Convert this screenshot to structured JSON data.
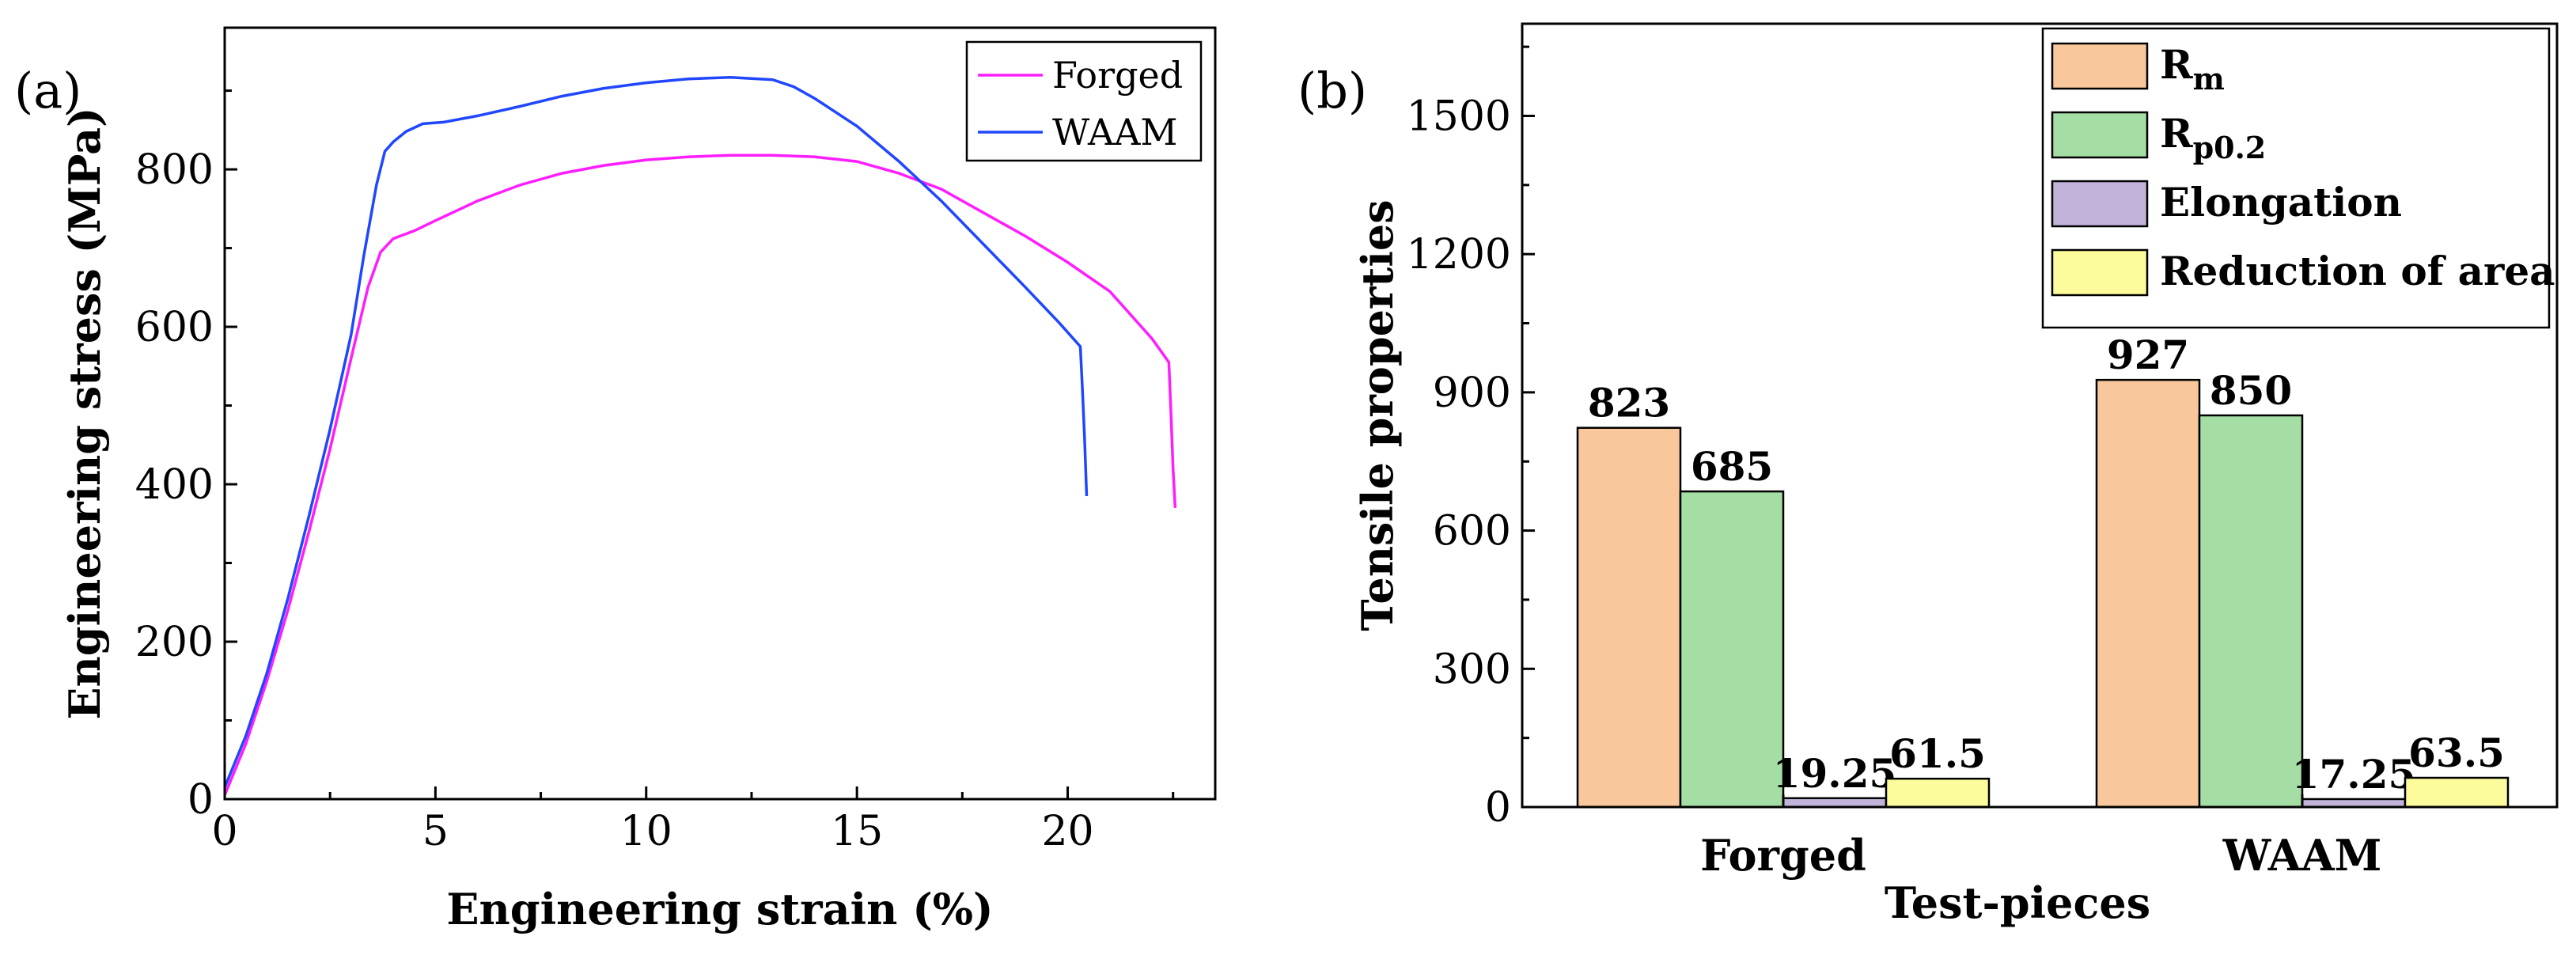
{
  "chart_data": [
    {
      "type": "line",
      "panel_label": "(a)",
      "xlabel": "Engineering strain (%)",
      "ylabel": "Engineering stress (MPa)",
      "xlim": [
        0,
        23.5
      ],
      "ylim": [
        0,
        980
      ],
      "x_ticks": [
        0,
        5,
        10,
        15,
        20
      ],
      "y_ticks": [
        0,
        200,
        400,
        600,
        800
      ],
      "legend_position": "top-right",
      "series": [
        {
          "name": "Forged",
          "color": "#ff1dff",
          "points": [
            [
              0,
              5
            ],
            [
              0.5,
              70
            ],
            [
              1,
              150
            ],
            [
              1.5,
              240
            ],
            [
              2,
              340
            ],
            [
              2.5,
              445
            ],
            [
              3,
              560
            ],
            [
              3.4,
              650
            ],
            [
              3.7,
              695
            ],
            [
              4,
              712
            ],
            [
              4.5,
              722
            ],
            [
              5,
              735
            ],
            [
              6,
              760
            ],
            [
              7,
              780
            ],
            [
              8,
              795
            ],
            [
              9,
              805
            ],
            [
              10,
              812
            ],
            [
              11,
              816
            ],
            [
              12,
              818
            ],
            [
              13,
              818
            ],
            [
              14,
              816
            ],
            [
              15,
              810
            ],
            [
              16,
              795
            ],
            [
              17,
              775
            ],
            [
              18,
              745
            ],
            [
              19,
              715
            ],
            [
              20,
              682
            ],
            [
              21,
              645
            ],
            [
              22,
              585
            ],
            [
              22.4,
              555
            ],
            [
              22.45,
              490
            ],
            [
              22.5,
              420
            ],
            [
              22.55,
              370
            ]
          ]
        },
        {
          "name": "WAAM",
          "color": "#2047ff",
          "points": [
            [
              0,
              15
            ],
            [
              0.5,
              80
            ],
            [
              1,
              160
            ],
            [
              1.5,
              255
            ],
            [
              2,
              360
            ],
            [
              2.5,
              470
            ],
            [
              3,
              590
            ],
            [
              3.3,
              690
            ],
            [
              3.6,
              780
            ],
            [
              3.8,
              823
            ],
            [
              4,
              835
            ],
            [
              4.3,
              848
            ],
            [
              4.7,
              858
            ],
            [
              5.2,
              860
            ],
            [
              6,
              868
            ],
            [
              7,
              880
            ],
            [
              8,
              893
            ],
            [
              9,
              903
            ],
            [
              10,
              910
            ],
            [
              11,
              915
            ],
            [
              12,
              917
            ],
            [
              13,
              914
            ],
            [
              13.5,
              905
            ],
            [
              14,
              890
            ],
            [
              15,
              855
            ],
            [
              16,
              810
            ],
            [
              17,
              760
            ],
            [
              18,
              705
            ],
            [
              19,
              650
            ],
            [
              19.8,
              605
            ],
            [
              20.3,
              575
            ],
            [
              20.35,
              520
            ],
            [
              20.4,
              460
            ],
            [
              20.45,
              385
            ]
          ]
        }
      ]
    },
    {
      "type": "bar",
      "panel_label": "(b)",
      "xlabel": "Test-pieces",
      "ylabel": "Tensile properties",
      "ylim": [
        0,
        1700
      ],
      "y_ticks": [
        0,
        300,
        600,
        900,
        1200,
        1500
      ],
      "categories": [
        "Forged",
        "WAAM"
      ],
      "legend_position": "top-right",
      "series": [
        {
          "name": "R",
          "subscript": "m",
          "color": "#f9c79c",
          "values": [
            823,
            927
          ],
          "labels": [
            "823",
            "927"
          ]
        },
        {
          "name": "R",
          "subscript": "p0.2",
          "color": "#a4dea4",
          "values": [
            685,
            850
          ],
          "labels": [
            "685",
            "850"
          ]
        },
        {
          "name": "Elongation",
          "subscript": "",
          "color": "#c2b3d9",
          "values": [
            19.25,
            17.25
          ],
          "labels": [
            "19.25",
            "17.25"
          ]
        },
        {
          "name": "Reduction of area",
          "subscript": "",
          "color": "#fcfc9c",
          "values": [
            61.5,
            63.5
          ],
          "labels": [
            "61.5",
            "63.5"
          ]
        }
      ]
    }
  ]
}
